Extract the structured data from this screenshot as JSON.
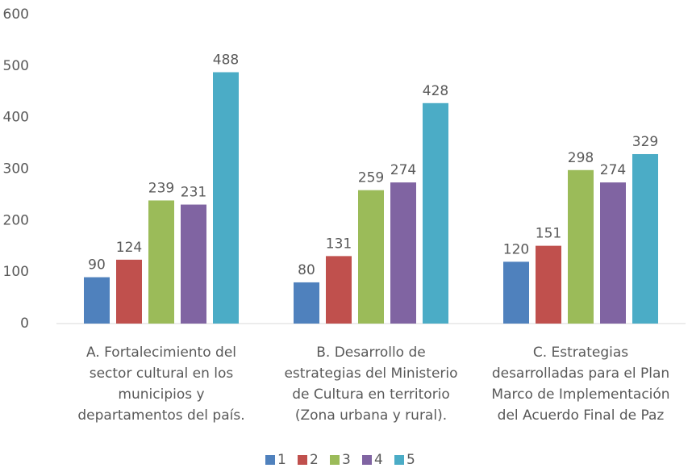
{
  "chart_data": {
    "type": "bar",
    "categories": [
      [
        "A. Fortalecimiento del",
        "sector cultural en los",
        "municipios y",
        "departamentos del país."
      ],
      [
        "B. Desarrollo de",
        "estrategias del Ministerio",
        "de Cultura en territorio",
        "(Zona urbana y rural)."
      ],
      [
        "C. Estrategias",
        "desarrolladas para el Plan",
        "Marco de Implementación",
        "del Acuerdo Final de Paz"
      ]
    ],
    "series": [
      {
        "name": "1",
        "color": "#4f81bd",
        "values": [
          90,
          80,
          120
        ]
      },
      {
        "name": "2",
        "color": "#c0504d",
        "values": [
          124,
          131,
          151
        ]
      },
      {
        "name": "3",
        "color": "#9bbb59",
        "values": [
          239,
          259,
          298
        ]
      },
      {
        "name": "4",
        "color": "#8064a2",
        "values": [
          231,
          274,
          274
        ]
      },
      {
        "name": "5",
        "color": "#4bacc6",
        "values": [
          488,
          428,
          329
        ]
      }
    ],
    "ylim": [
      0,
      600
    ],
    "yticks": [
      0,
      100,
      200,
      300,
      400,
      500,
      600
    ],
    "grid": false,
    "legend": "bottom"
  }
}
